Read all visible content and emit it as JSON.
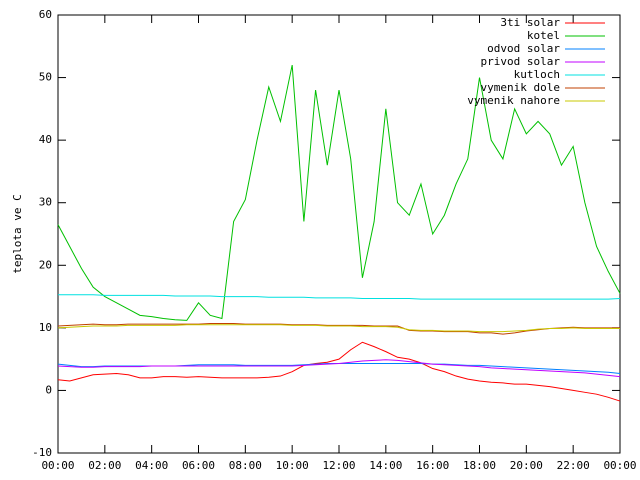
{
  "chart_data": {
    "type": "line",
    "ylabel": "teplota ve C",
    "xlim": [
      0,
      24
    ],
    "xticks": [
      {
        "value": 0,
        "label": "00:00"
      },
      {
        "value": 2,
        "label": "02:00"
      },
      {
        "value": 4,
        "label": "04:00"
      },
      {
        "value": 6,
        "label": "06:00"
      },
      {
        "value": 8,
        "label": "08:00"
      },
      {
        "value": 10,
        "label": "10:00"
      },
      {
        "value": 12,
        "label": "12:00"
      },
      {
        "value": 14,
        "label": "14:00"
      },
      {
        "value": 16,
        "label": "16:00"
      },
      {
        "value": 18,
        "label": "18:00"
      },
      {
        "value": 20,
        "label": "20:00"
      },
      {
        "value": 22,
        "label": "22:00"
      },
      {
        "value": 24,
        "label": "00:00"
      }
    ],
    "ylim": [
      -10,
      60
    ],
    "yticks": [
      -10,
      0,
      10,
      20,
      30,
      40,
      50,
      60
    ],
    "legend": "top-right",
    "x": [
      0,
      0.5,
      1,
      1.5,
      2,
      2.5,
      3,
      3.5,
      4,
      4.5,
      5,
      5.5,
      6,
      6.5,
      7,
      7.5,
      8,
      8.5,
      9,
      9.5,
      10,
      10.5,
      11,
      11.5,
      12,
      12.5,
      13,
      13.5,
      14,
      14.5,
      15,
      15.5,
      16,
      16.5,
      17,
      17.5,
      18,
      18.5,
      19,
      19.5,
      20,
      20.5,
      21,
      21.5,
      22,
      22.5,
      23,
      23.5,
      24
    ],
    "series": [
      {
        "name": "3ti solar",
        "color": "#ff0000",
        "values": [
          1.7,
          1.5,
          2,
          2.5,
          2.6,
          2.7,
          2.5,
          2,
          2,
          2.2,
          2.2,
          2.1,
          2.2,
          2.1,
          2,
          2,
          2,
          2,
          2.1,
          2.3,
          3,
          4,
          4.3,
          4.5,
          5,
          6.5,
          7.7,
          7,
          6.2,
          5.3,
          5,
          4.4,
          3.5,
          3,
          2.3,
          1.8,
          1.5,
          1.3,
          1.2,
          1,
          1,
          0.8,
          0.6,
          0.3,
          0,
          -0.3,
          -0.6,
          -1.1,
          -1.7
        ]
      },
      {
        "name": "kotel",
        "color": "#00c000",
        "values": [
          26.5,
          23,
          19.5,
          16.5,
          15,
          14,
          13,
          12,
          11.8,
          11.5,
          11.3,
          11.2,
          14,
          12,
          11.5,
          27,
          30.5,
          40,
          48.5,
          43,
          52,
          27,
          48,
          36,
          48,
          37,
          18,
          27,
          45,
          30,
          28,
          33,
          25,
          28,
          33,
          37,
          50,
          40,
          37,
          45,
          41,
          43,
          41,
          36,
          39,
          30,
          23,
          19,
          15.5
        ]
      },
      {
        "name": "odvod solar",
        "color": "#0080ff",
        "values": [
          4.2,
          4,
          3.8,
          3.8,
          3.9,
          3.9,
          3.9,
          3.9,
          3.9,
          3.9,
          3.9,
          4,
          4.1,
          4.1,
          4.1,
          4.1,
          4,
          4,
          4,
          4,
          4,
          4.1,
          4.2,
          4.3,
          4.3,
          4.3,
          4.3,
          4.3,
          4.3,
          4.3,
          4.3,
          4.3,
          4.2,
          4.2,
          4.1,
          4,
          4,
          3.9,
          3.8,
          3.7,
          3.6,
          3.5,
          3.4,
          3.3,
          3.2,
          3.1,
          3,
          2.9,
          2.7
        ]
      },
      {
        "name": "privod solar",
        "color": "#c000ff",
        "values": [
          3.9,
          3.8,
          3.7,
          3.7,
          3.8,
          3.8,
          3.8,
          3.8,
          3.9,
          3.9,
          3.9,
          3.9,
          3.9,
          3.9,
          3.9,
          3.9,
          3.9,
          3.9,
          3.9,
          3.9,
          3.9,
          4,
          4.1,
          4.2,
          4.3,
          4.5,
          4.7,
          4.8,
          4.9,
          4.8,
          4.6,
          4.4,
          4.2,
          4.1,
          4,
          3.9,
          3.8,
          3.6,
          3.5,
          3.4,
          3.3,
          3.2,
          3.1,
          3,
          2.9,
          2.8,
          2.6,
          2.4,
          2.2
        ]
      },
      {
        "name": "kutloch",
        "color": "#00e0e0",
        "values": [
          15.3,
          15.3,
          15.3,
          15.3,
          15.2,
          15.2,
          15.2,
          15.2,
          15.2,
          15.2,
          15.1,
          15.1,
          15.1,
          15.1,
          15,
          15,
          15,
          15,
          14.9,
          14.9,
          14.9,
          14.9,
          14.8,
          14.8,
          14.8,
          14.8,
          14.7,
          14.7,
          14.7,
          14.7,
          14.7,
          14.6,
          14.6,
          14.6,
          14.6,
          14.6,
          14.6,
          14.6,
          14.6,
          14.6,
          14.6,
          14.6,
          14.6,
          14.6,
          14.6,
          14.6,
          14.6,
          14.6,
          14.7
        ]
      },
      {
        "name": "vymenik dole",
        "color": "#c04000",
        "values": [
          10.3,
          10.4,
          10.5,
          10.6,
          10.5,
          10.5,
          10.6,
          10.6,
          10.6,
          10.6,
          10.6,
          10.6,
          10.6,
          10.7,
          10.7,
          10.7,
          10.6,
          10.6,
          10.6,
          10.6,
          10.5,
          10.5,
          10.5,
          10.4,
          10.4,
          10.4,
          10.4,
          10.3,
          10.3,
          10.3,
          9.6,
          9.5,
          9.5,
          9.4,
          9.4,
          9.4,
          9.2,
          9.2,
          9,
          9.2,
          9.5,
          9.7,
          9.9,
          10,
          10.1,
          10,
          10,
          10,
          10
        ]
      },
      {
        "name": "vymenik nahore",
        "color": "#c8c800",
        "values": [
          10,
          10.1,
          10.2,
          10.3,
          10.3,
          10.3,
          10.4,
          10.4,
          10.4,
          10.4,
          10.4,
          10.5,
          10.5,
          10.5,
          10.5,
          10.5,
          10.5,
          10.5,
          10.5,
          10.5,
          10.4,
          10.4,
          10.4,
          10.3,
          10.3,
          10.3,
          10.2,
          10.2,
          10.2,
          10.1,
          9.7,
          9.6,
          9.6,
          9.5,
          9.5,
          9.5,
          9.4,
          9.4,
          9.4,
          9.5,
          9.6,
          9.8,
          9.9,
          9.9,
          10,
          9.9,
          9.9,
          9.9,
          9.9
        ]
      }
    ]
  }
}
